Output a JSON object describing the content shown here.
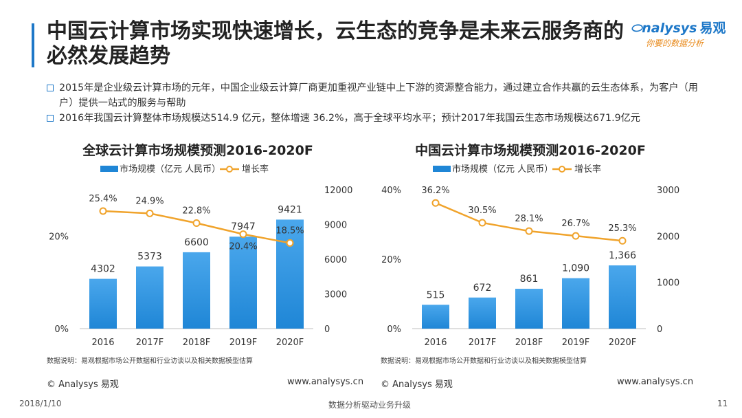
{
  "slide": {
    "title": "中国云计算市场实现快速增长，云生态的竞争是未来云服务商的必然发展趋势",
    "bullets": [
      "2015年是企业级云计算市场的元年，中国企业级云计算厂商更加重视产业链中上下游的资源整合能力，通过建立合作共赢的云生态体系，为客户（用户）提供一站式的服务与帮助",
      "2016年我国云计算整体市场规模达514.9 亿元，整体增速 36.2%，高于全球平均水平；预计2017年我国云生态市场规模达671.9亿元"
    ],
    "logo": {
      "main": "nalysys",
      "cn": "易观",
      "sub": "你要的数据分析"
    },
    "footer": {
      "date": "2018/1/10",
      "center": "数据分析驱动业务升级",
      "page": "11"
    }
  },
  "colors": {
    "bar": "#1f86d6",
    "bar_light": "#4aa7ec",
    "line": "#f0a32b",
    "accent": "#1e78c8"
  },
  "chart_data": [
    {
      "type": "bar",
      "title": "全球云计算市场规模预测2016-2020F",
      "categories": [
        "2016",
        "2017F",
        "2018F",
        "2019F",
        "2020F"
      ],
      "series": [
        {
          "name": "市场规模（亿元 人民币）",
          "type": "bar",
          "axis": "right",
          "values": [
            4302,
            5373,
            6600,
            7947,
            9421
          ],
          "labels": [
            "4302",
            "5373",
            "6600",
            "7947",
            "9421"
          ]
        },
        {
          "name": "增长率",
          "type": "line",
          "axis": "left",
          "values": [
            25.4,
            24.9,
            22.8,
            20.4,
            18.5
          ],
          "labels": [
            "25.4%",
            "24.9%",
            "22.8%",
            "20.4%",
            "18.5%"
          ]
        }
      ],
      "y_left": {
        "range": [
          0,
          30
        ],
        "ticks": [
          0,
          20
        ],
        "tick_labels": [
          "0%",
          "20%"
        ]
      },
      "y_right": {
        "range": [
          0,
          12000
        ],
        "ticks": [
          0,
          3000,
          6000,
          9000,
          12000
        ],
        "tick_labels": [
          "0",
          "3000",
          "6000",
          "9000",
          "12000"
        ]
      },
      "legend": "top",
      "grid": false,
      "note": "数据说明：易观根据市场公开数据和行业访谈以及相关数据模型估算",
      "footer_left": "© Analysys 易观",
      "footer_right": "www.analysys.cn"
    },
    {
      "type": "bar",
      "title": "中国云计算市场规模预测2016-2020F",
      "categories": [
        "2016",
        "2017F",
        "2018F",
        "2019F",
        "2020F"
      ],
      "series": [
        {
          "name": "市场规模（亿元 人民币）",
          "type": "bar",
          "axis": "right",
          "values": [
            515,
            672,
            861,
            1090,
            1366
          ],
          "labels": [
            "515",
            "672",
            "861",
            "1,090",
            "1,366"
          ]
        },
        {
          "name": "增长率",
          "type": "line",
          "axis": "left",
          "values": [
            36.2,
            30.5,
            28.1,
            26.7,
            25.3
          ],
          "labels": [
            "36.2%",
            "30.5%",
            "28.1%",
            "26.7%",
            "25.3%"
          ]
        }
      ],
      "y_left": {
        "range": [
          0,
          40
        ],
        "ticks": [
          0,
          20,
          40
        ],
        "tick_labels": [
          "0%",
          "20%",
          "40%"
        ]
      },
      "y_right": {
        "range": [
          0,
          3000
        ],
        "ticks": [
          0,
          1000,
          2000,
          3000
        ],
        "tick_labels": [
          "0",
          "1000",
          "2000",
          "3000"
        ]
      },
      "legend": "top",
      "grid": false,
      "note": "数据说明：易观根据市场公开数据和行业访谈以及相关数据模型估算",
      "footer_left": "© Analysys 易观",
      "footer_right": "www.analysys.cn"
    }
  ]
}
